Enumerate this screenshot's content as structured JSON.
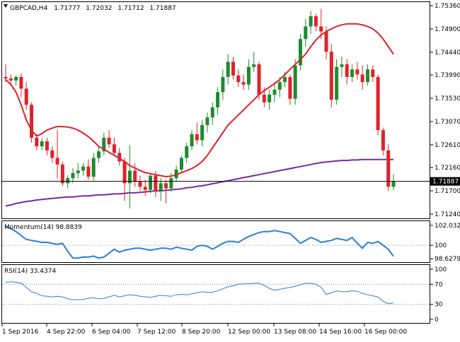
{
  "header": {
    "symbol": "GBPCAD,H4",
    "open": "1.71777",
    "high": "1.72032",
    "low": "1.71712",
    "close": "1.71887"
  },
  "colors": {
    "bull": "#1f8a2e",
    "bear": "#e0222a",
    "ma_fast": "#e0222a",
    "ma_slow": "#7a2aa0",
    "indicator": "#2a7fd4"
  },
  "chart_data": [
    {
      "type": "candlestick",
      "title": "GBPCAD,H4",
      "ylim": [
        1.7124,
        1.7536
      ],
      "y_ticks": [
        "1.75360",
        "1.74900",
        "1.74440",
        "1.73990",
        "1.73530",
        "1.73070",
        "1.72610",
        "1.72160",
        "1.71700",
        "1.71240"
      ],
      "x_ticks": [
        "1 Sep 2016",
        "4 Sep 22:00",
        "6 Sep 04:00",
        "7 Sep 12:00",
        "8 Sep 20:00",
        "12 Sep 00:00",
        "13 Sep 08:00",
        "14 Sep 16:00",
        "16 Sep 00:00"
      ],
      "current_price": "1.71887",
      "ohlc": [
        [
          1.7395,
          1.742,
          1.7385,
          1.7392
        ],
        [
          1.7392,
          1.74,
          1.738,
          1.7388
        ],
        [
          1.7388,
          1.7398,
          1.7378,
          1.7395
        ],
        [
          1.7395,
          1.7402,
          1.7355,
          1.7372
        ],
        [
          1.7372,
          1.7385,
          1.733,
          1.734
        ],
        [
          1.734,
          1.7345,
          1.7265,
          1.7275
        ],
        [
          1.7275,
          1.7282,
          1.725,
          1.7258
        ],
        [
          1.7258,
          1.7275,
          1.725,
          1.7268
        ],
        [
          1.7268,
          1.7275,
          1.724,
          1.725
        ],
        [
          1.725,
          1.7258,
          1.7225,
          1.7235
        ],
        [
          1.7235,
          1.729,
          1.7195,
          1.7222
        ],
        [
          1.7222,
          1.7228,
          1.718,
          1.7185
        ],
        [
          1.7185,
          1.72,
          1.7175,
          1.7195
        ],
        [
          1.7195,
          1.7215,
          1.7185,
          1.7205
        ],
        [
          1.7205,
          1.7225,
          1.7195,
          1.721
        ],
        [
          1.721,
          1.7225,
          1.72,
          1.7218
        ],
        [
          1.7218,
          1.7232,
          1.7192,
          1.7198
        ],
        [
          1.7198,
          1.7245,
          1.719,
          1.7235
        ],
        [
          1.7235,
          1.7258,
          1.7225,
          1.7248
        ],
        [
          1.7248,
          1.7285,
          1.724,
          1.7275
        ],
        [
          1.7275,
          1.729,
          1.7255,
          1.7262
        ],
        [
          1.7262,
          1.7275,
          1.724,
          1.7245
        ],
        [
          1.7245,
          1.7255,
          1.722,
          1.7228
        ],
        [
          1.7228,
          1.7235,
          1.715,
          1.7185
        ],
        [
          1.7185,
          1.726,
          1.7135,
          1.721
        ],
        [
          1.721,
          1.7225,
          1.7178,
          1.7188
        ],
        [
          1.7188,
          1.72,
          1.717,
          1.7178
        ],
        [
          1.7178,
          1.7192,
          1.716,
          1.7172
        ],
        [
          1.7172,
          1.7205,
          1.7165,
          1.72
        ],
        [
          1.72,
          1.721,
          1.7158,
          1.717
        ],
        [
          1.717,
          1.7195,
          1.715,
          1.7185
        ],
        [
          1.7185,
          1.7192,
          1.7145,
          1.7175
        ],
        [
          1.7175,
          1.7205,
          1.7168,
          1.7195
        ],
        [
          1.7195,
          1.722,
          1.7188,
          1.7212
        ],
        [
          1.7212,
          1.724,
          1.7205,
          1.7235
        ],
        [
          1.7235,
          1.7265,
          1.7225,
          1.7258
        ],
        [
          1.7258,
          1.729,
          1.725,
          1.7282
        ],
        [
          1.7282,
          1.7305,
          1.7262,
          1.727
        ],
        [
          1.727,
          1.731,
          1.7258,
          1.73
        ],
        [
          1.73,
          1.7325,
          1.7285,
          1.7315
        ],
        [
          1.7315,
          1.7345,
          1.73,
          1.7335
        ],
        [
          1.7335,
          1.7375,
          1.732,
          1.7365
        ],
        [
          1.7365,
          1.741,
          1.735,
          1.7395
        ],
        [
          1.7395,
          1.744,
          1.738,
          1.7425
        ],
        [
          1.7425,
          1.7435,
          1.739,
          1.7398
        ],
        [
          1.7398,
          1.741,
          1.7375,
          1.7385
        ],
        [
          1.7385,
          1.74,
          1.737,
          1.738
        ],
        [
          1.738,
          1.743,
          1.737,
          1.7415
        ],
        [
          1.7415,
          1.7445,
          1.7405,
          1.742
        ],
        [
          1.742,
          1.7425,
          1.735,
          1.736
        ],
        [
          1.736,
          1.7375,
          1.7335,
          1.7345
        ],
        [
          1.7345,
          1.737,
          1.733,
          1.736
        ],
        [
          1.736,
          1.7385,
          1.7345,
          1.737
        ],
        [
          1.737,
          1.7395,
          1.7355,
          1.7385
        ],
        [
          1.7385,
          1.7405,
          1.7375,
          1.7395
        ],
        [
          1.7395,
          1.74,
          1.734,
          1.7352
        ],
        [
          1.7352,
          1.743,
          1.734,
          1.7418
        ],
        [
          1.7418,
          1.748,
          1.7408,
          1.747
        ],
        [
          1.747,
          1.751,
          1.7455,
          1.7495
        ],
        [
          1.7495,
          1.7525,
          1.748,
          1.7515
        ],
        [
          1.7515,
          1.752,
          1.7485,
          1.7495
        ],
        [
          1.7495,
          1.753,
          1.747,
          1.7485
        ],
        [
          1.7485,
          1.7495,
          1.743,
          1.7445
        ],
        [
          1.7445,
          1.746,
          1.7335,
          1.735
        ],
        [
          1.735,
          1.743,
          1.734,
          1.7415
        ],
        [
          1.7415,
          1.7435,
          1.7395,
          1.742
        ],
        [
          1.742,
          1.743,
          1.738,
          1.7395
        ],
        [
          1.7395,
          1.742,
          1.7385,
          1.741
        ],
        [
          1.741,
          1.7425,
          1.739,
          1.74
        ],
        [
          1.74,
          1.7418,
          1.737,
          1.7385
        ],
        [
          1.7385,
          1.742,
          1.7378,
          1.741
        ],
        [
          1.741,
          1.7418,
          1.7385,
          1.7395
        ],
        [
          1.7395,
          1.74,
          1.728,
          1.729
        ],
        [
          1.729,
          1.7295,
          1.724,
          1.725
        ],
        [
          1.725,
          1.7262,
          1.717,
          1.7178
        ],
        [
          1.7178,
          1.7203,
          1.7171,
          1.7189
        ]
      ],
      "ma_fast": [
        1.739,
        1.738,
        1.7365,
        1.734,
        1.731,
        1.729,
        1.7278,
        1.7283,
        1.729,
        1.7294,
        1.7297,
        1.7297,
        1.7296,
        1.7294,
        1.729,
        1.7284,
        1.7277,
        1.7268,
        1.7258,
        1.7252,
        1.7246,
        1.724,
        1.7234,
        1.7228,
        1.722,
        1.7215,
        1.721,
        1.7206,
        1.7204,
        1.7202,
        1.72,
        1.7198,
        1.7199,
        1.7202,
        1.7206,
        1.721,
        1.7214,
        1.722,
        1.7228,
        1.724,
        1.7255,
        1.727,
        1.7285,
        1.73,
        1.731,
        1.732,
        1.733,
        1.734,
        1.735,
        1.736,
        1.7368,
        1.7375,
        1.7382,
        1.739,
        1.74,
        1.741,
        1.742,
        1.743,
        1.744,
        1.7455,
        1.7468,
        1.7478,
        1.7485,
        1.749,
        1.7495,
        1.7498,
        1.75,
        1.75,
        1.75,
        1.7498,
        1.7495,
        1.749,
        1.7482,
        1.747,
        1.7455,
        1.744
      ],
      "ma_slow": [
        1.714,
        1.7142,
        1.7145,
        1.7147,
        1.7149,
        1.715,
        1.7152,
        1.7153,
        1.7154,
        1.7155,
        1.7156,
        1.7157,
        1.7158,
        1.7158,
        1.7159,
        1.716,
        1.716,
        1.7161,
        1.7162,
        1.7162,
        1.7163,
        1.7164,
        1.7164,
        1.7165,
        1.7166,
        1.7166,
        1.7167,
        1.7168,
        1.7169,
        1.717,
        1.717,
        1.7171,
        1.7172,
        1.7173,
        1.7174,
        1.7176,
        1.7177,
        1.7179,
        1.718,
        1.7182,
        1.7184,
        1.7186,
        1.7188,
        1.719,
        1.7192,
        1.7194,
        1.7196,
        1.7198,
        1.72,
        1.7202,
        1.7204,
        1.7206,
        1.7208,
        1.721,
        1.7212,
        1.7214,
        1.7216,
        1.7218,
        1.722,
        1.7222,
        1.7224,
        1.7226,
        1.7227,
        1.7228,
        1.7229,
        1.723,
        1.723,
        1.7231,
        1.7231,
        1.7232,
        1.7232,
        1.7232,
        1.7232,
        1.7232,
        1.7232,
        1.7232
      ]
    },
    {
      "type": "line",
      "title": "Momentum(14) 98.8839",
      "ylim": [
        98.5,
        102.1
      ],
      "y_ticks": [
        "102.0329",
        "100",
        "98.6279"
      ],
      "values": [
        101.9,
        101.7,
        101.4,
        101.0,
        100.6,
        100.5,
        100.4,
        100.3,
        100.3,
        100.2,
        100.1,
        100.2,
        99.4,
        98.7,
        98.7,
        98.8,
        98.8,
        98.9,
        98.7,
        98.8,
        99.2,
        99.6,
        99.3,
        99.5,
        99.6,
        99.7,
        99.7,
        99.6,
        99.5,
        99.6,
        99.7,
        99.7,
        99.6,
        99.8,
        99.7,
        99.6,
        99.5,
        99.9,
        100.0,
        99.9,
        99.6,
        99.9,
        100.2,
        100.4,
        100.4,
        100.3,
        100.6,
        100.9,
        101.1,
        101.3,
        101.4,
        101.4,
        101.5,
        101.4,
        101.3,
        101.2,
        100.7,
        100.2,
        100.5,
        100.8,
        100.6,
        100.3,
        100.4,
        100.5,
        100.7,
        100.6,
        100.5,
        100.8,
        100.2,
        99.7,
        100.3,
        100.2,
        100.4,
        100.0,
        99.6,
        98.88
      ]
    },
    {
      "type": "line",
      "title": "RSI(14) 33.4374",
      "ylim": [
        0,
        100
      ],
      "y_ticks": [
        "100",
        "70",
        "30",
        "0"
      ],
      "values": [
        74,
        75,
        74,
        72,
        64,
        55,
        52,
        47,
        46,
        45,
        46,
        45,
        41,
        39,
        39,
        40,
        42,
        43,
        41,
        42,
        45,
        48,
        45,
        47,
        49,
        48,
        46,
        45,
        44,
        46,
        48,
        47,
        46,
        49,
        50,
        49,
        51,
        53,
        55,
        54,
        54,
        57,
        61,
        65,
        67,
        70,
        71,
        71,
        72,
        72,
        68,
        62,
        58,
        60,
        62,
        64,
        66,
        69,
        72,
        72,
        70,
        64,
        50,
        53,
        57,
        55,
        55,
        57,
        56,
        52,
        49,
        47,
        45,
        36,
        31,
        33
      ]
    }
  ]
}
